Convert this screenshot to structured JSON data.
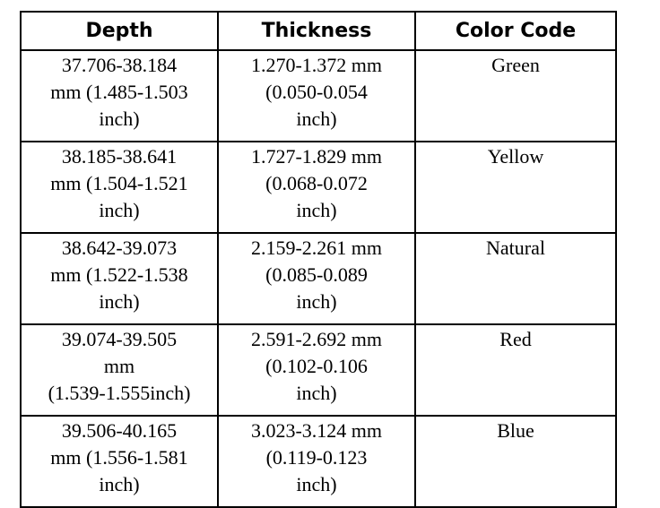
{
  "table": {
    "header": [
      "Depth",
      "Thickness",
      "Color Code"
    ],
    "rows": [
      [
        [
          "37.706-38.184",
          "mm (1.485-1.503",
          "inch)"
        ],
        [
          "1.270-1.372 mm",
          "(0.050-0.054",
          "inch)"
        ],
        [
          "Green"
        ]
      ],
      [
        [
          "38.185-38.641",
          "mm (1.504-1.521",
          "inch)"
        ],
        [
          "1.727-1.829 mm",
          "(0.068-0.072",
          "inch)"
        ],
        [
          "Yellow"
        ]
      ],
      [
        [
          "38.642-39.073",
          "mm (1.522-1.538",
          "inch)"
        ],
        [
          "2.159-2.261 mm",
          "(0.085-0.089",
          "inch)"
        ],
        [
          "Natural"
        ]
      ],
      [
        [
          "39.074-39.505",
          "mm",
          "(1.539-1.555inch)"
        ],
        [
          "2.591-2.692 mm",
          "(0.102-0.106",
          "inch)"
        ],
        [
          "Red"
        ]
      ],
      [
        [
          "39.506-40.165",
          "mm (1.556-1.581",
          "inch)"
        ],
        [
          "3.023-3.124 mm",
          "(0.119-0.123",
          "inch)"
        ],
        [
          "Blue"
        ]
      ]
    ]
  }
}
